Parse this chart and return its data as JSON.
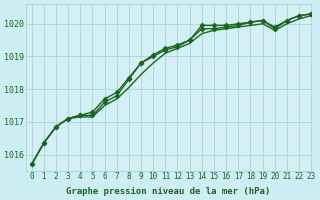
{
  "background_color": "#cceef4",
  "plot_bg_color": "#d4f0f4",
  "grid_color": "#a8d4dc",
  "line_color": "#1a6620",
  "marker_color": "#1a6620",
  "xlabel": "Graphe pression niveau de la mer (hPa)",
  "xlim": [
    -0.5,
    23
  ],
  "ylim": [
    1015.5,
    1020.6
  ],
  "yticks": [
    1016,
    1017,
    1018,
    1019,
    1020
  ],
  "xticks": [
    0,
    1,
    2,
    3,
    4,
    5,
    6,
    7,
    8,
    9,
    10,
    11,
    12,
    13,
    14,
    15,
    16,
    17,
    18,
    19,
    20,
    21,
    22,
    23
  ],
  "series": [
    [
      1015.7,
      1016.35,
      1016.85,
      1017.1,
      1017.2,
      1017.2,
      1017.6,
      1017.8,
      1018.3,
      1018.8,
      1019.05,
      1019.25,
      1019.35,
      1019.5,
      1019.85,
      1019.85,
      1019.9,
      1019.95,
      1020.05,
      1020.1,
      1019.85,
      1020.1,
      1020.25,
      1020.3
    ],
    [
      1015.7,
      1016.35,
      1016.85,
      1017.1,
      1017.15,
      1017.15,
      1017.5,
      1017.7,
      1018.05,
      1018.45,
      1018.8,
      1019.1,
      1019.25,
      1019.4,
      1019.7,
      1019.8,
      1019.85,
      1019.9,
      1019.95,
      1020.0,
      1019.8,
      1020.0,
      1020.15,
      1020.25
    ],
    [
      1015.7,
      1016.35,
      1016.85,
      1017.1,
      1017.2,
      1017.3,
      1017.7,
      1017.9,
      1018.35,
      1018.8,
      1019.0,
      1019.2,
      1019.3,
      1019.5,
      1019.95,
      1019.95,
      1019.95,
      1020.0,
      1020.05,
      1020.1,
      1019.9,
      1020.1,
      1020.25,
      1020.3
    ]
  ],
  "series_markers": [
    true,
    false,
    true
  ],
  "marker_style": "D",
  "marker_size": 2.5,
  "linewidth": 1.0,
  "tick_fontsize": 5.5,
  "xlabel_fontsize": 6.5
}
